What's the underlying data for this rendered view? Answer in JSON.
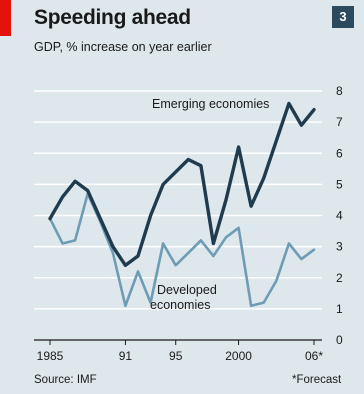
{
  "header": {
    "title": "Speeding ahead",
    "subtitle": "GDP, % increase on year earlier",
    "badge": "3"
  },
  "footer": {
    "source": "Source: IMF",
    "note": "*Forecast"
  },
  "colors": {
    "background": "#dee7ec",
    "accent_red": "#e3120b",
    "emerging": "#1f3b4d",
    "developed": "#6e9cb4",
    "grid": "#ffffff",
    "badge": "#2c4a5e"
  },
  "chart_data": {
    "type": "line",
    "title": "Speeding ahead",
    "subtitle": "GDP, % increase on year earlier",
    "x": [
      1985,
      1986,
      1987,
      1988,
      1989,
      1990,
      1991,
      1992,
      1993,
      1994,
      1995,
      1996,
      1997,
      1998,
      1999,
      2000,
      2001,
      2002,
      2003,
      2004,
      2005,
      2006
    ],
    "series": [
      {
        "name": "Emerging economies",
        "values": [
          3.9,
          4.6,
          5.1,
          4.8,
          3.9,
          3.0,
          2.4,
          2.7,
          4.0,
          5.0,
          5.4,
          5.8,
          5.6,
          3.1,
          4.5,
          6.2,
          4.3,
          5.2,
          6.4,
          7.6,
          6.9,
          7.4
        ]
      },
      {
        "name": "Developed economies",
        "values": [
          3.9,
          3.1,
          3.2,
          4.7,
          3.8,
          2.8,
          1.1,
          2.2,
          1.2,
          3.1,
          2.4,
          2.8,
          3.2,
          2.7,
          3.3,
          3.6,
          1.1,
          1.2,
          1.9,
          3.1,
          2.6,
          2.9
        ]
      }
    ],
    "annotations": {
      "emerging_label": "Emerging economies",
      "developed_label_line1": "Developed",
      "developed_label_line2": "economies"
    },
    "x_ticks": [
      {
        "value": 1985,
        "label": "1985"
      },
      {
        "value": 1991,
        "label": "91"
      },
      {
        "value": 1995,
        "label": "95"
      },
      {
        "value": 2000,
        "label": "2000"
      },
      {
        "value": 2006,
        "label": "06*"
      }
    ],
    "y_ticks": [
      0,
      1,
      2,
      3,
      4,
      5,
      6,
      7,
      8
    ],
    "xlim": [
      1985,
      2006
    ],
    "ylim": [
      0,
      8
    ],
    "y_axis_side": "right",
    "grid": true
  }
}
